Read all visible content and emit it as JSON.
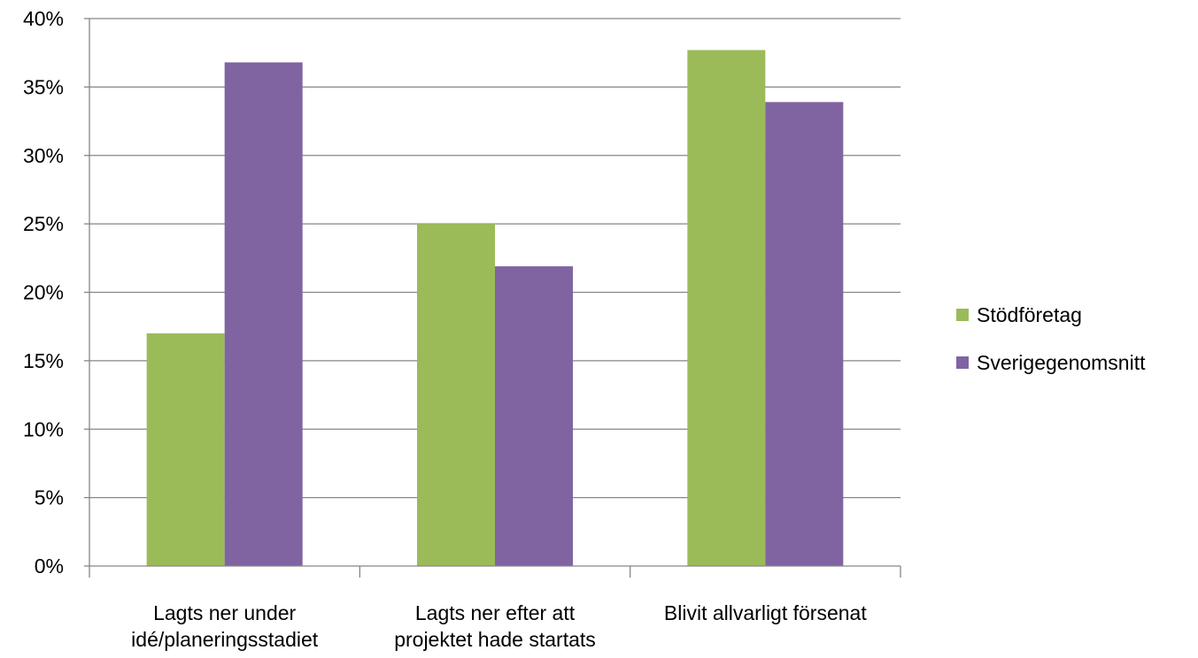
{
  "chart_data": {
    "type": "bar",
    "title": "",
    "xlabel": "",
    "ylabel": "",
    "ylim": [
      0,
      40
    ],
    "y_tick_step": 5,
    "y_tick_labels": [
      "0%",
      "5%",
      "10%",
      "15%",
      "20%",
      "25%",
      "30%",
      "35%",
      "40%"
    ],
    "grid": true,
    "legend_position": "right",
    "categories": [
      [
        "Lagts ner under",
        "idé/planeringsstadiet"
      ],
      [
        "Lagts ner efter att",
        "projektet hade startats"
      ],
      [
        "Blivit allvarligt försenat"
      ]
    ],
    "series": [
      {
        "name": "Stödföretag",
        "color": "#9BBB59",
        "values": [
          17,
          25,
          37.7
        ]
      },
      {
        "name": "Sverigegenomsnitt",
        "color": "#8064A2",
        "values": [
          36.8,
          21.9,
          33.9
        ]
      }
    ]
  }
}
